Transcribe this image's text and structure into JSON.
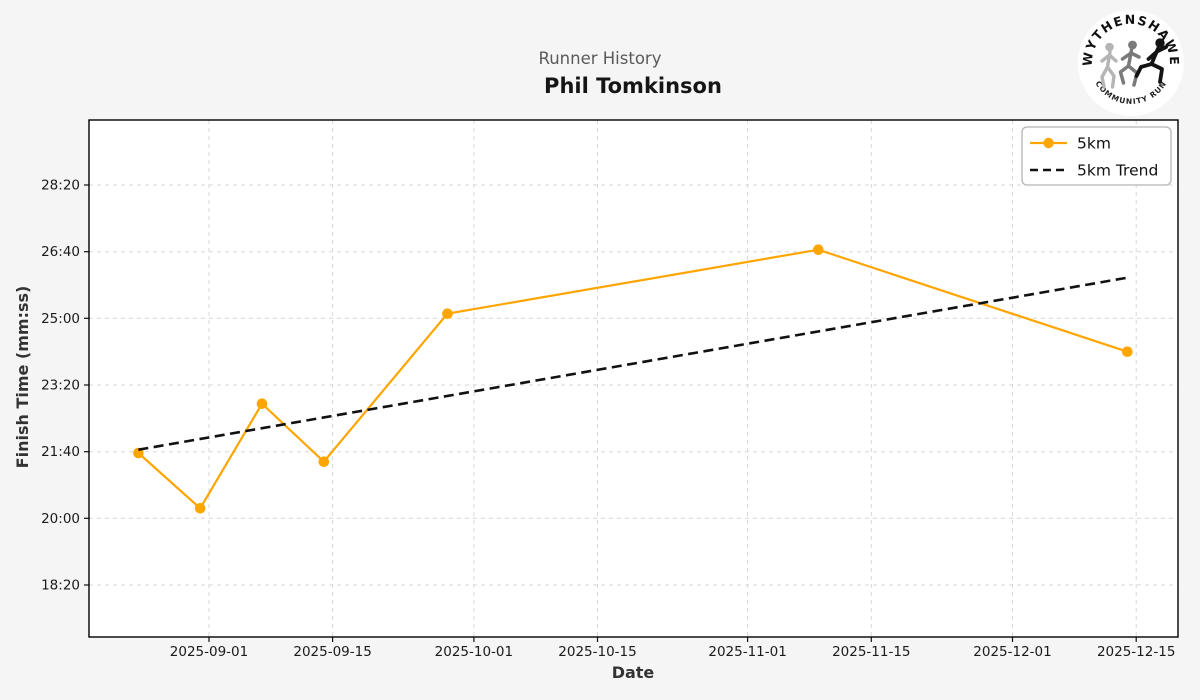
{
  "page": {
    "background_color": "#f5f5f5"
  },
  "header": {
    "subtitle": "Runner History",
    "title": "Phil Tomkinson"
  },
  "logo": {
    "top_text": "WYTHENSHAWE",
    "bottom_text": "COMMUNITY RUN",
    "runner_icon_colors": [
      "#b5b5b5",
      "#7a7a7a",
      "#141414"
    ]
  },
  "chart_data": {
    "type": "line",
    "title": "Phil Tomkinson",
    "subtitle": "Runner History",
    "xlabel": "Date",
    "ylabel": "Finish Time (mm:ss)",
    "grid": true,
    "legend_position": "upper right",
    "legend": [
      "5km",
      "5km Trend"
    ],
    "x_ticks": [
      "2025-09-01",
      "2025-09-15",
      "2025-10-01",
      "2025-10-15",
      "2025-11-01",
      "2025-11-15",
      "2025-12-01",
      "2025-12-15"
    ],
    "y_ticks": [
      "28:20",
      "26:40",
      "25:00",
      "23:20",
      "21:40",
      "20:00",
      "18:20"
    ],
    "x_range": [
      "2025-08-18",
      "2025-12-20"
    ],
    "y_range": [
      "17:02",
      "29:58"
    ],
    "series": [
      {
        "name": "5km",
        "color": "#FFA500",
        "line_style": "solid",
        "marker": "circle",
        "points": [
          {
            "date": "2025-08-24",
            "time": "21:38"
          },
          {
            "date": "2025-08-31",
            "time": "20:15"
          },
          {
            "date": "2025-09-07",
            "time": "22:52"
          },
          {
            "date": "2025-09-14",
            "time": "21:25"
          },
          {
            "date": "2025-09-28",
            "time": "25:07"
          },
          {
            "date": "2025-11-09",
            "time": "26:43"
          },
          {
            "date": "2025-12-14",
            "time": "24:10"
          }
        ]
      },
      {
        "name": "5km Trend",
        "color": "#111111",
        "line_style": "dashed",
        "marker": null,
        "points": [
          {
            "date": "2025-08-24",
            "time": "21:43"
          },
          {
            "date": "2025-12-14",
            "time": "26:01"
          }
        ]
      }
    ]
  },
  "colors": {
    "accent_orange": "#FFA500",
    "trend_black": "#111111",
    "gridline": "#d7d7d7",
    "plot_background": "#ffffff",
    "page_background": "#f5f5f5"
  }
}
